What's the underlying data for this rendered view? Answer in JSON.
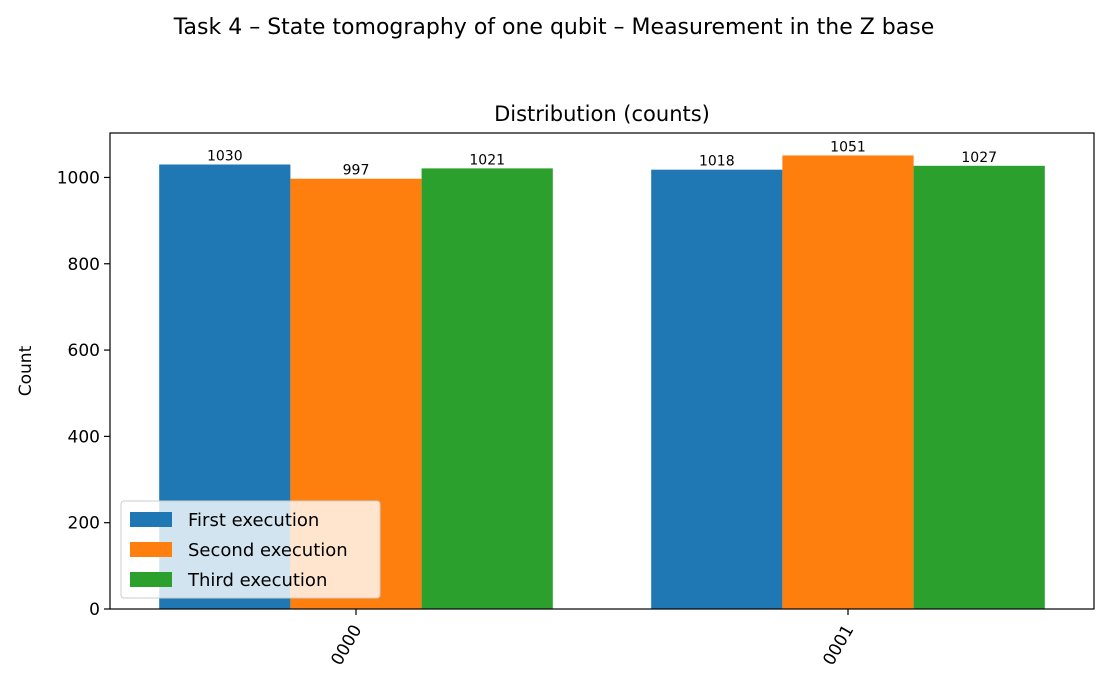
{
  "figure": {
    "suptitle": "Task 4 – State tomography of one qubit – Measurement in the Z base"
  },
  "chart_data": {
    "type": "bar",
    "title": "Distribution (counts)",
    "xlabel": "",
    "ylabel": "Count",
    "categories": [
      "0000",
      "0001"
    ],
    "ylim": [
      0,
      1103
    ],
    "yticks": [
      0,
      200,
      400,
      600,
      800,
      1000
    ],
    "grid": false,
    "legend_position": "lower-left",
    "series": [
      {
        "name": "First execution",
        "values": [
          1030,
          1018
        ],
        "color": "#1f77b4"
      },
      {
        "name": "Second execution",
        "values": [
          997,
          1051
        ],
        "color": "#ff7f0e"
      },
      {
        "name": "Third execution",
        "values": [
          1021,
          1027
        ],
        "color": "#2ca02c"
      }
    ]
  }
}
